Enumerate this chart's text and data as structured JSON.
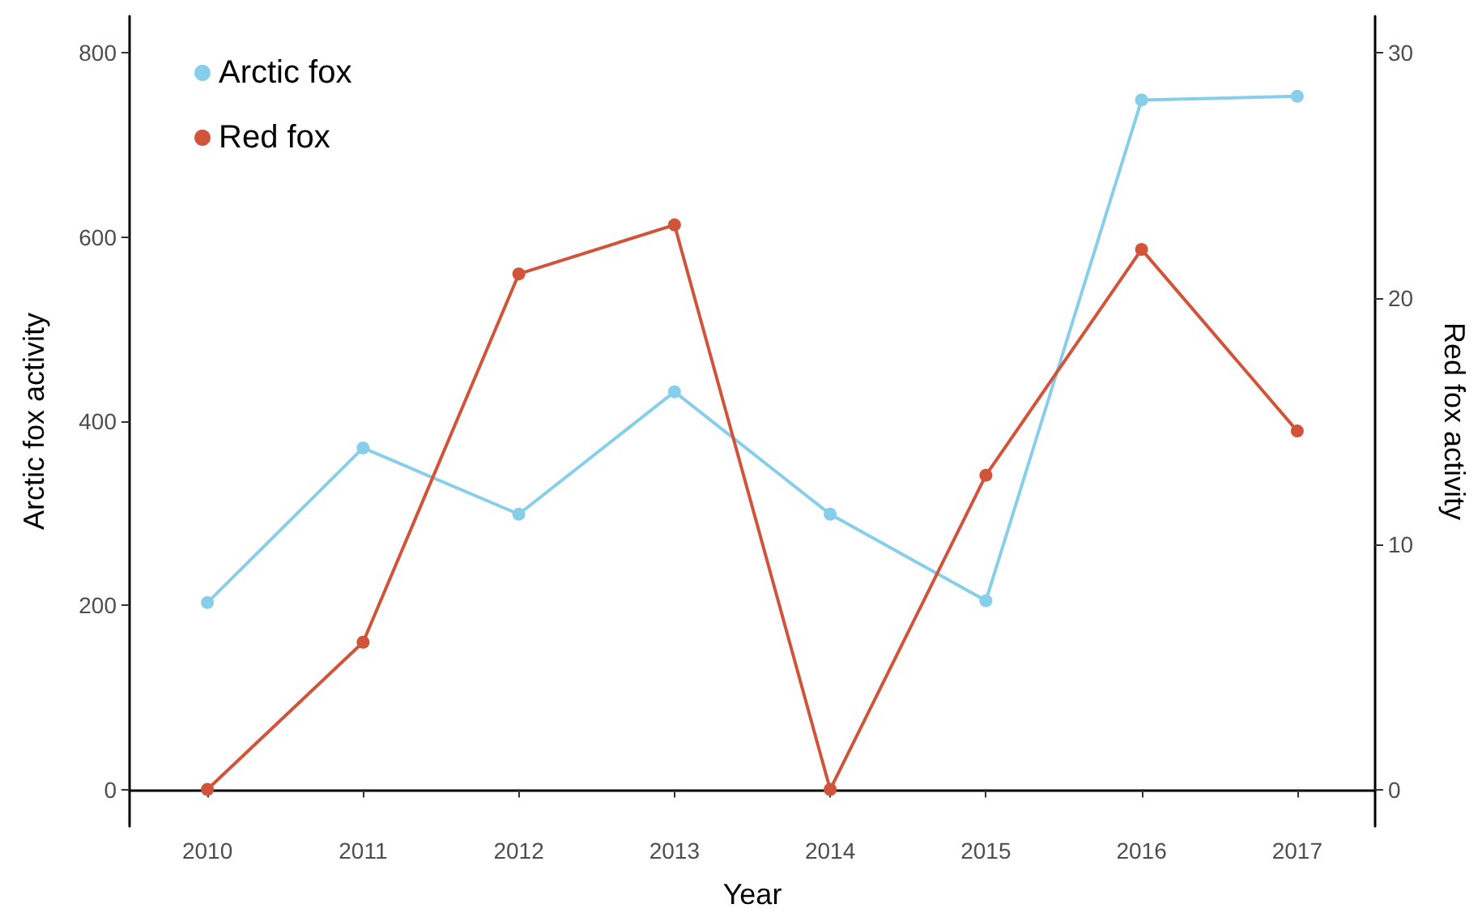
{
  "chart_data": {
    "type": "line",
    "xlabel": "Year",
    "ylabel": "Arctic fox activity",
    "y2label": "Red fox activity",
    "categories": [
      "2010",
      "2011",
      "2012",
      "2013",
      "2014",
      "2015",
      "2016",
      "2017"
    ],
    "series": [
      {
        "name": "Arctic fox",
        "color": "#87ceeb",
        "values": [
          203,
          371,
          299,
          432,
          299,
          205,
          749,
          753
        ]
      },
      {
        "name": "Red fox",
        "color": "#d1543a",
        "axis": "y2",
        "values": [
          0,
          6,
          21,
          23,
          0,
          12.8,
          22,
          14.6
        ]
      }
    ],
    "ylim": [
      -40,
      840
    ],
    "yticks": [
      0,
      200,
      400,
      600,
      800
    ],
    "y2lim": [
      -1.5,
      31.5
    ],
    "y2ticks": [
      0,
      10,
      20,
      30
    ],
    "grid": false,
    "legend": "top left",
    "marker": "circle",
    "line_style": "solid"
  }
}
